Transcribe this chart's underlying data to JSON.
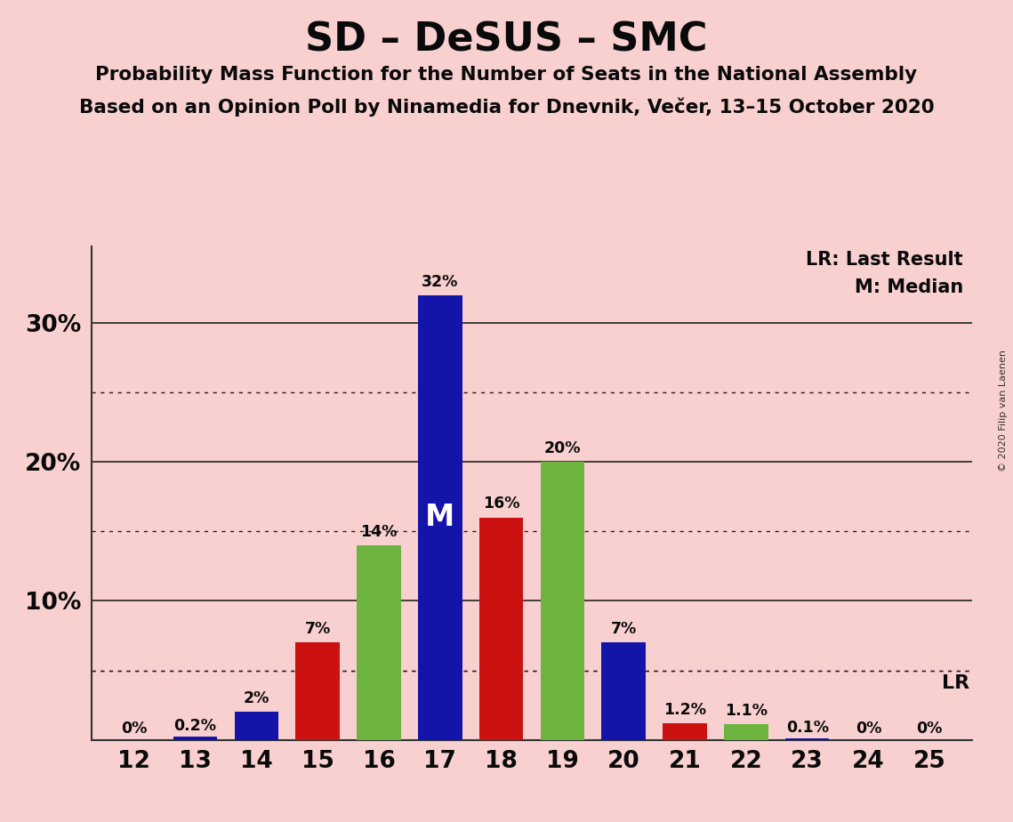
{
  "title": "SD – DeSUS – SMC",
  "subtitle1": "Probability Mass Function for the Number of Seats in the National Assembly",
  "subtitle2": "Based on an Opinion Poll by Ninamedia for Dnevnik, Večer, 13–15 October 2020",
  "copyright": "© 2020 Filip van Laenen",
  "background_color": "#f9d0d0",
  "seats": [
    12,
    13,
    14,
    15,
    16,
    17,
    18,
    19,
    20,
    21,
    22,
    23,
    24,
    25
  ],
  "probabilities": [
    0.0,
    0.002,
    0.02,
    0.07,
    0.14,
    0.32,
    0.16,
    0.2,
    0.07,
    0.012,
    0.011,
    0.001,
    0.0,
    0.0
  ],
  "bar_colors": [
    "#1414aa",
    "#1414aa",
    "#1414aa",
    "#cc1111",
    "#6db33f",
    "#1414aa",
    "#cc1111",
    "#6db33f",
    "#1414aa",
    "#cc1111",
    "#6db33f",
    "#1414aa",
    "#1414aa",
    "#1414aa"
  ],
  "labels": [
    "0%",
    "0.2%",
    "2%",
    "7%",
    "14%",
    "32%",
    "16%",
    "20%",
    "7%",
    "1.2%",
    "1.1%",
    "0.1%",
    "0%",
    "0%"
  ],
  "median_seat": 17,
  "lr_value": 0.05,
  "ylim": [
    0,
    0.355
  ],
  "solid_lines": [
    0.1,
    0.2,
    0.3
  ],
  "dotted_lines": [
    0.05,
    0.15,
    0.25
  ],
  "legend_text1": "LR: Last Result",
  "legend_text2": "M: Median"
}
